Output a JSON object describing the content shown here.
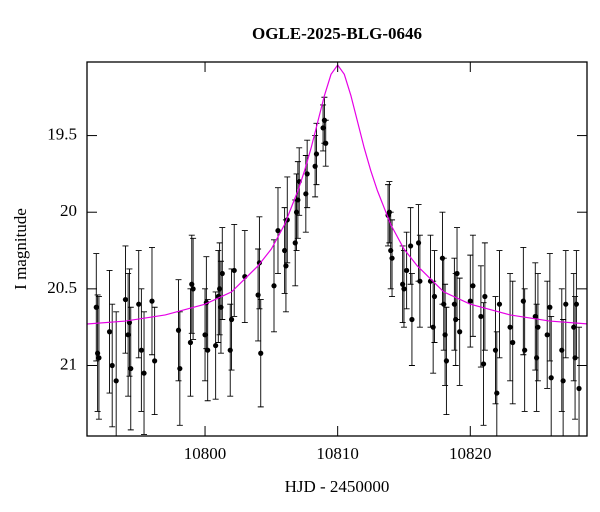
{
  "chart_data": {
    "type": "scatter",
    "title": "OGLE-2025-BLG-0646",
    "xlabel": "HJD - 2450000",
    "ylabel": "I magnitude",
    "xlim": [
      10791.1,
      10828.8
    ],
    "ylim": [
      19.02,
      21.46
    ],
    "y_inverted": true,
    "xticks": [
      10800,
      10810,
      10820
    ],
    "yticks": [
      19.5,
      20,
      20.5,
      21
    ],
    "series": [
      {
        "type": "errorbar",
        "color": "#000000",
        "x": [
          10791.8,
          10791.9,
          10792.0,
          10792.8,
          10793.0,
          10793.3,
          10794.0,
          10794.2,
          10794.3,
          10794.4,
          10795.0,
          10795.2,
          10795.4,
          10796.0,
          10796.2,
          10798.0,
          10798.1,
          10798.9,
          10799.0,
          10799.1,
          10800.0,
          10800.1,
          10800.2,
          10800.8,
          10801.0,
          10801.1,
          10801.2,
          10801.3,
          10801.9,
          10802.0,
          10802.2,
          10803.0,
          10804.0,
          10804.1,
          10804.2,
          10805.2,
          10805.5,
          10806.0,
          10806.1,
          10806.2,
          10806.8,
          10806.9,
          10807.0,
          10807.1,
          10807.6,
          10807.7,
          10808.3,
          10808.4,
          10808.9,
          10809.0,
          10809.1,
          10813.8,
          10813.9,
          10814.0,
          10814.1,
          10814.9,
          10815.0,
          10815.2,
          10815.5,
          10815.6,
          10816.1,
          10816.2,
          10817.0,
          10817.2,
          10817.3,
          10817.9,
          10818.0,
          10818.1,
          10818.2,
          10818.8,
          10818.9,
          10819.0,
          10819.2,
          10820.0,
          10820.2,
          10820.8,
          10821.0,
          10821.1,
          10821.9,
          10822.0,
          10822.2,
          10823.0,
          10823.2,
          10824.0,
          10824.1,
          10824.9,
          10825.0,
          10825.1,
          10825.8,
          10826.0,
          10826.1,
          10826.9,
          10827.0,
          10827.2,
          10827.8,
          10827.9,
          10828.0,
          10828.2
        ],
        "values": [
          20.62,
          20.92,
          20.95,
          20.78,
          21.0,
          21.1,
          20.57,
          20.8,
          20.72,
          21.02,
          20.6,
          20.9,
          21.05,
          20.58,
          20.97,
          20.77,
          21.02,
          20.85,
          20.47,
          20.5,
          20.8,
          20.59,
          20.9,
          20.87,
          20.55,
          20.5,
          20.62,
          20.4,
          20.9,
          20.7,
          20.38,
          20.42,
          20.54,
          20.33,
          20.92,
          20.48,
          20.12,
          20.25,
          20.35,
          20.05,
          20.2,
          20.0,
          19.92,
          19.8,
          19.88,
          19.75,
          19.7,
          19.62,
          19.45,
          19.4,
          19.55,
          20.02,
          20.0,
          20.25,
          20.3,
          20.47,
          20.5,
          20.38,
          20.22,
          20.7,
          20.2,
          20.45,
          20.45,
          20.75,
          20.55,
          20.3,
          20.6,
          20.8,
          20.97,
          20.6,
          20.7,
          20.4,
          20.78,
          20.58,
          20.48,
          20.68,
          20.99,
          20.55,
          20.9,
          21.18,
          20.6,
          20.75,
          20.85,
          20.58,
          20.9,
          20.68,
          20.95,
          20.75,
          20.8,
          20.62,
          21.08,
          20.9,
          21.1,
          20.6,
          20.75,
          20.95,
          20.6,
          21.15
        ],
        "errors": [
          0.35,
          0.38,
          0.4,
          0.4,
          0.4,
          0.45,
          0.35,
          0.4,
          0.35,
          0.4,
          0.35,
          0.4,
          0.4,
          0.35,
          0.35,
          0.33,
          0.37,
          0.35,
          0.32,
          0.33,
          0.3,
          0.3,
          0.33,
          0.35,
          0.3,
          0.3,
          0.3,
          0.3,
          0.3,
          0.33,
          0.3,
          0.3,
          0.3,
          0.3,
          0.35,
          0.3,
          0.28,
          0.28,
          0.3,
          0.28,
          0.28,
          0.25,
          0.25,
          0.22,
          0.25,
          0.22,
          0.2,
          0.2,
          0.15,
          0.15,
          0.15,
          0.2,
          0.2,
          0.25,
          0.25,
          0.25,
          0.25,
          0.25,
          0.25,
          0.3,
          0.25,
          0.3,
          0.3,
          0.3,
          0.3,
          0.3,
          0.3,
          0.33,
          0.35,
          0.3,
          0.3,
          0.3,
          0.35,
          0.3,
          0.33,
          0.33,
          0.4,
          0.35,
          0.35,
          0.4,
          0.35,
          0.35,
          0.4,
          0.35,
          0.4,
          0.35,
          0.35,
          0.35,
          0.35,
          0.35,
          0.4,
          0.4,
          0.4,
          0.35,
          0.35,
          0.4,
          0.35,
          0.4
        ]
      },
      {
        "type": "line",
        "color": "#e600e6",
        "x": [
          10791,
          10794,
          10797,
          10800,
          10802,
          10804,
          10805,
          10806,
          10807,
          10807.5,
          10808,
          10808.5,
          10809,
          10809.5,
          10810,
          10810.5,
          10811,
          10811.5,
          10812,
          10812.5,
          10813,
          10814,
          10815,
          10816,
          10818,
          10820,
          10823,
          10826,
          10829
        ],
        "values": [
          20.73,
          20.71,
          20.67,
          20.6,
          20.52,
          20.35,
          20.24,
          20.08,
          19.86,
          19.73,
          19.58,
          19.41,
          19.24,
          19.1,
          19.04,
          19.1,
          19.24,
          19.41,
          19.58,
          19.73,
          19.86,
          20.08,
          20.24,
          20.35,
          20.52,
          20.6,
          20.67,
          20.71,
          20.73
        ]
      }
    ]
  }
}
